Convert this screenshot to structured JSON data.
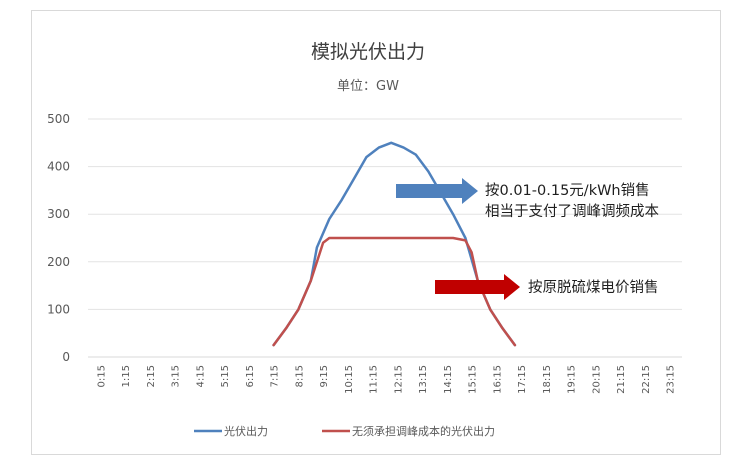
{
  "chart_data": {
    "type": "line",
    "title": "模拟光伏出力",
    "subtitle": "单位：GW",
    "xlabel": "",
    "ylabel": "",
    "ylim": [
      0,
      500
    ],
    "yticks": [
      0,
      100,
      200,
      300,
      400,
      500
    ],
    "grid": true,
    "legend_position": "bottom",
    "categories": [
      "0:15",
      "1:15",
      "2:15",
      "3:15",
      "4:15",
      "5:15",
      "6:15",
      "7:15",
      "8:15",
      "9:15",
      "10:15",
      "11:15",
      "12:15",
      "13:15",
      "14:15",
      "15:15",
      "16:15",
      "17:15",
      "18:15",
      "19:15",
      "20:15",
      "21:15",
      "22:15",
      "23:15"
    ],
    "series": [
      {
        "name": "光伏出力",
        "color": "#4f81bd",
        "points": [
          [
            7.25,
            25
          ],
          [
            7.75,
            60
          ],
          [
            8.25,
            100
          ],
          [
            8.75,
            160
          ],
          [
            9.0,
            230
          ],
          [
            9.5,
            290
          ],
          [
            10.0,
            330
          ],
          [
            10.5,
            375
          ],
          [
            11.0,
            420
          ],
          [
            11.5,
            440
          ],
          [
            12.0,
            450
          ],
          [
            12.5,
            440
          ],
          [
            13.0,
            425
          ],
          [
            13.5,
            390
          ],
          [
            14.0,
            345
          ],
          [
            14.5,
            300
          ],
          [
            15.0,
            250
          ],
          [
            15.5,
            160
          ],
          [
            16.0,
            100
          ],
          [
            16.5,
            60
          ],
          [
            17.0,
            25
          ]
        ]
      },
      {
        "name": "无须承担调峰成本的光伏出力",
        "color": "#c0504d",
        "points": [
          [
            7.25,
            25
          ],
          [
            7.75,
            60
          ],
          [
            8.25,
            100
          ],
          [
            8.75,
            160
          ],
          [
            9.25,
            240
          ],
          [
            9.5,
            250
          ],
          [
            10.0,
            250
          ],
          [
            11.0,
            250
          ],
          [
            12.0,
            250
          ],
          [
            13.0,
            250
          ],
          [
            14.0,
            250
          ],
          [
            14.5,
            250
          ],
          [
            15.0,
            245
          ],
          [
            15.25,
            220
          ],
          [
            15.5,
            160
          ],
          [
            16.0,
            100
          ],
          [
            16.5,
            60
          ],
          [
            17.0,
            25
          ]
        ]
      }
    ],
    "annotations": [
      {
        "lines": [
          "按0.01-0.15元/kWh销售",
          "相当于支付了调峰调频成本"
        ],
        "arrow_color": "#4f81bd"
      },
      {
        "lines": [
          "按原脱硫煤电价销售"
        ],
        "arrow_color": "#c00000"
      }
    ]
  }
}
